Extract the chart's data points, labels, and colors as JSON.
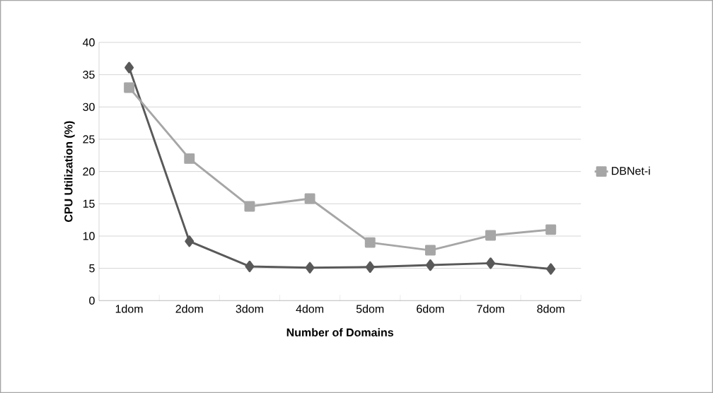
{
  "chart_data": {
    "type": "line",
    "xlabel": "Number of Domains",
    "ylabel": "CPU Utilization (%)",
    "categories": [
      "1dom",
      "2dom",
      "3dom",
      "4dom",
      "5dom",
      "6dom",
      "7dom",
      "8dom"
    ],
    "series": [
      {
        "color": "#595959",
        "marker": "diamond",
        "values": [
          36.1,
          9.2,
          5.3,
          5.1,
          5.2,
          5.5,
          5.8,
          4.9
        ]
      },
      {
        "name": "DBNet-i",
        "color": "#a6a6a6",
        "marker": "square",
        "values": [
          33,
          22,
          14.6,
          15.8,
          9.0,
          7.8,
          10.1,
          11.0
        ]
      }
    ],
    "ylim": [
      0,
      40
    ],
    "yticks": [
      0,
      5,
      10,
      15,
      20,
      25,
      30,
      35,
      40
    ],
    "grid": "y",
    "legend": "right",
    "line_style": "solid"
  }
}
